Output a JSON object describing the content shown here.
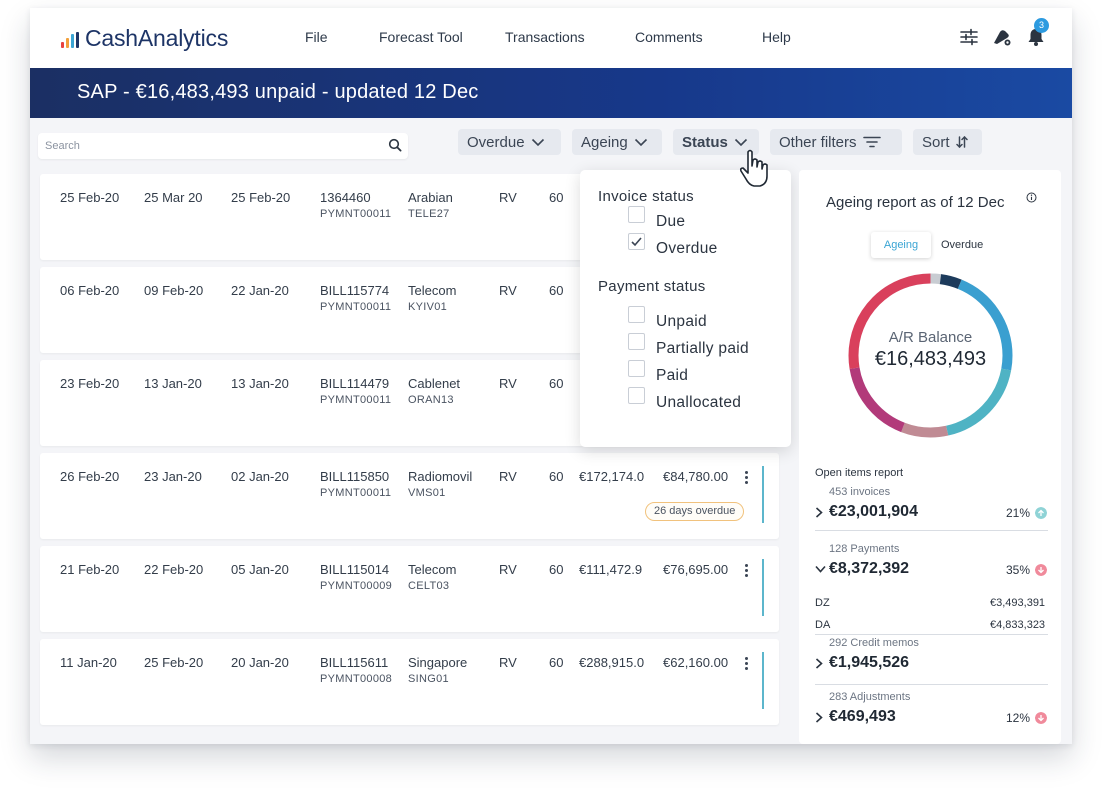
{
  "brand": {
    "name": "CashAnalytics"
  },
  "nav": {
    "items": [
      "File",
      "Forecast Tool",
      "Transactions",
      "Comments",
      "Help"
    ]
  },
  "header": {
    "notification_count": "3",
    "icons": [
      "sliders-icon",
      "bell-settings-icon",
      "bell-icon"
    ]
  },
  "banner": {
    "title": "SAP - €16,483,493 unpaid - updated 12 Dec"
  },
  "search": {
    "placeholder": "Search"
  },
  "filters": {
    "overdue": "Overdue",
    "ageing": "Ageing",
    "status": "Status",
    "other": "Other filters",
    "sort": "Sort"
  },
  "rows": [
    {
      "date1": "25 Feb-20",
      "date2": "25 Mar 20",
      "date3": "25 Feb-20",
      "ref": "1364460",
      "payment": "PYMNT00011",
      "customer": "Arabian",
      "code": "TELE27",
      "type": "RV",
      "days": "60",
      "amount": "",
      "balance": "",
      "tag": ""
    },
    {
      "date1": "06 Feb-20",
      "date2": "09 Feb-20",
      "date3": "22 Jan-20",
      "ref": "BILL115774",
      "payment": "PYMNT00011",
      "customer": "Telecom",
      "code": "KYIV01",
      "type": "RV",
      "days": "60",
      "amount": "",
      "balance": "",
      "tag": ""
    },
    {
      "date1": "23 Feb-20",
      "date2": "13 Jan-20",
      "date3": "13 Jan-20",
      "ref": "BILL114479",
      "payment": "PYMNT00011",
      "customer": "Cablenet",
      "code": "ORAN13",
      "type": "RV",
      "days": "60",
      "amount": "",
      "balance": "",
      "tag": ""
    },
    {
      "date1": "26 Feb-20",
      "date2": "23 Jan-20",
      "date3": "02 Jan-20",
      "ref": "BILL115850",
      "payment": "PYMNT00011",
      "customer": "Radiomovil",
      "code": "VMS01",
      "type": "RV",
      "days": "60",
      "amount": "€172,174.0",
      "balance": "€84,780.00",
      "tag": "26 days overdue"
    },
    {
      "date1": "21 Feb-20",
      "date2": "22 Feb-20",
      "date3": "05 Jan-20",
      "ref": "BILL115014",
      "payment": "PYMNT00009",
      "customer": "Telecom",
      "code": "CELT03",
      "type": "RV",
      "days": "60",
      "amount": "€111,472.9",
      "balance": "€76,695.00",
      "tag": ""
    },
    {
      "date1": "11 Jan-20",
      "date2": "25 Feb-20",
      "date3": "20 Jan-20",
      "ref": "BILL115611",
      "payment": "PYMNT00008",
      "customer": "Singapore",
      "code": "SING01",
      "type": "RV",
      "days": "60",
      "amount": "€288,915.0",
      "balance": "€62,160.00",
      "tag": ""
    }
  ],
  "status_dropdown": {
    "invoice_heading": "Invoice status",
    "invoice_options": [
      {
        "label": "Due",
        "checked": false
      },
      {
        "label": "Overdue",
        "checked": true
      }
    ],
    "payment_heading": "Payment status",
    "payment_options": [
      {
        "label": "Unpaid",
        "checked": false
      },
      {
        "label": "Partially paid",
        "checked": false
      },
      {
        "label": "Paid",
        "checked": false
      },
      {
        "label": "Unallocated",
        "checked": false
      }
    ]
  },
  "ageing": {
    "title": "Ageing report as of 12 Dec",
    "toggle": [
      "Ageing",
      "Overdue"
    ],
    "balance_label": "A/R Balance",
    "balance_value": "€16,483,493",
    "colors": [
      "#c8ccd2",
      "#1d3b5c",
      "#3a9fd0",
      "#4fb3c4",
      "#c08b94",
      "#b23a7a",
      "#d9405c"
    ]
  },
  "open_items": {
    "title": "Open items report",
    "groups": [
      {
        "sub": "453 invoices",
        "value": "€23,001,904",
        "pct": "21%",
        "trend": "up",
        "expanded": false
      },
      {
        "sub": "128 Payments",
        "value": "€8,372,392",
        "pct": "35%",
        "trend": "down",
        "expanded": true,
        "details": [
          {
            "label": "DZ",
            "value": "€3,493,391"
          },
          {
            "label": "DA",
            "value": "€4,833,323"
          }
        ]
      },
      {
        "sub": "292 Credit memos",
        "value": "€1,945,526",
        "pct": "",
        "trend": "",
        "expanded": false
      },
      {
        "sub": "283 Adjustments",
        "value": "€469,493",
        "pct": "12%",
        "trend": "down",
        "expanded": false
      }
    ]
  }
}
